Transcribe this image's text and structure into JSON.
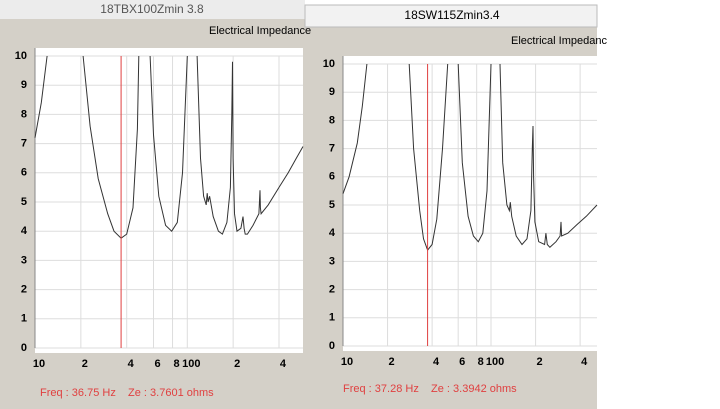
{
  "chart_data": [
    {
      "type": "line",
      "title": "18TBX100Zmin 3.8",
      "subtitle": "Electrical Impedance",
      "x": [
        10,
        11,
        12,
        15,
        20.7,
        23,
        26,
        30,
        33,
        36.75,
        40,
        44,
        47,
        48,
        52,
        57,
        60,
        65,
        72,
        79,
        86,
        93,
        100,
        108,
        116,
        122,
        128,
        133,
        135,
        137,
        140,
        148,
        160,
        170,
        182,
        192,
        196,
        198,
        200,
        204,
        212,
        225,
        232,
        236,
        240,
        248,
        270,
        295,
        300,
        302,
        305,
        340,
        400,
        460,
        520,
        575
      ],
      "values": [
        7.2,
        8.4,
        10,
        null,
        10,
        7.6,
        5.8,
        4.6,
        4.0,
        3.76,
        3.9,
        4.8,
        7.5,
        10,
        null,
        10,
        7.3,
        5.2,
        4.2,
        4.0,
        4.3,
        6.0,
        10,
        null,
        10,
        6.5,
        5.2,
        4.9,
        5.3,
        5.0,
        5.2,
        4.5,
        4.0,
        3.9,
        4.3,
        5.5,
        8.0,
        9.8,
        6.5,
        4.6,
        4.0,
        4.1,
        4.5,
        4.1,
        3.9,
        3.9,
        4.2,
        4.6,
        5.4,
        4.8,
        4.6,
        4.9,
        5.5,
        6.0,
        6.5,
        6.9
      ],
      "color": "#333333",
      "log_x": true,
      "grid": true,
      "xlim": [
        10,
        575
      ],
      "ylim": [
        0,
        10
      ],
      "xticks": [
        10,
        {
          "value": 20,
          "label": "2"
        },
        {
          "value": 40,
          "label": "4"
        },
        {
          "value": 60,
          "label": "6"
        },
        {
          "value": 80,
          "label": "8"
        },
        100,
        {
          "value": 200,
          "label": "2"
        },
        {
          "value": 400,
          "label": "4"
        }
      ],
      "yticks": [
        0,
        1,
        2,
        3,
        4,
        5,
        6,
        7,
        8,
        9,
        10
      ],
      "cursor": {
        "x": 36.75,
        "color": "#e04040",
        "label": "Freq : 36.75 Hz    Ze : 3.7601 ohms"
      }
    },
    {
      "type": "line",
      "title": "18SW115Zmin3.4",
      "subtitle": "Electrical Impedanc",
      "x": [
        10,
        11,
        12.5,
        13.5,
        14.5,
        20,
        28,
        30,
        33,
        35,
        37.28,
        40,
        43,
        47,
        51,
        55,
        60,
        64,
        70,
        76,
        82,
        88,
        94,
        100,
        108,
        115,
        120,
        128,
        133,
        135,
        138,
        148,
        162,
        175,
        186,
        190,
        192,
        194,
        198,
        210,
        230,
        235,
        240,
        250,
        275,
        293,
        297,
        300,
        330,
        380,
        440,
        520
      ],
      "values": [
        5.4,
        6.0,
        7.2,
        8.5,
        10,
        null,
        10,
        7.0,
        4.8,
        3.8,
        3.4,
        3.6,
        4.5,
        7.0,
        10,
        null,
        10,
        6.5,
        4.6,
        3.9,
        3.7,
        4.0,
        5.5,
        10,
        null,
        10,
        6.5,
        5.0,
        4.8,
        5.1,
        4.6,
        3.9,
        3.6,
        3.8,
        4.8,
        7.0,
        7.8,
        6.0,
        4.4,
        3.7,
        3.6,
        4.0,
        3.6,
        3.5,
        3.7,
        3.9,
        4.4,
        3.9,
        4.0,
        4.3,
        4.6,
        5.0
      ],
      "color": "#333333",
      "log_x": true,
      "grid": true,
      "xlim": [
        10,
        520
      ],
      "ylim": [
        0,
        10
      ],
      "xticks": [
        10,
        {
          "value": 20,
          "label": "2"
        },
        {
          "value": 40,
          "label": "4"
        },
        {
          "value": 60,
          "label": "6"
        },
        {
          "value": 80,
          "label": "8"
        },
        100,
        {
          "value": 200,
          "label": "2"
        },
        {
          "value": 400,
          "label": "4"
        }
      ],
      "yticks": [
        0,
        1,
        2,
        3,
        4,
        5,
        6,
        7,
        8,
        9,
        10
      ],
      "cursor": {
        "x": 37.28,
        "color": "#e04040",
        "label": "Freq : 37.28 Hz    Ze : 3.3942 ohms"
      }
    }
  ]
}
